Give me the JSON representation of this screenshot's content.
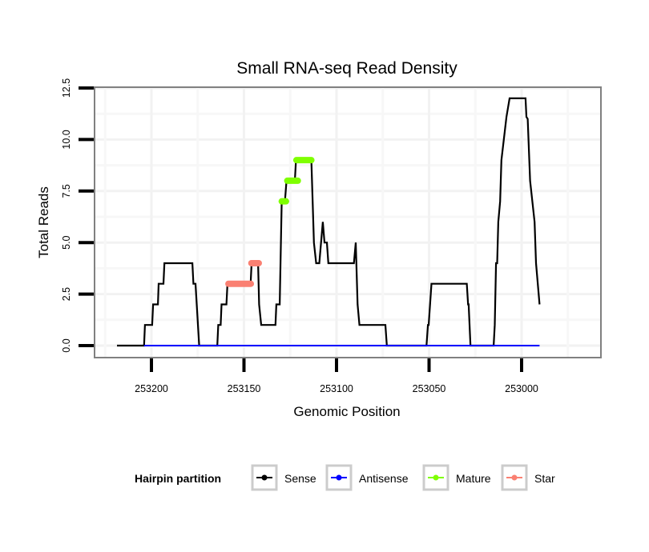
{
  "chart_data": {
    "type": "line",
    "title": "Small RNA-seq Read Density",
    "xlabel": "Genomic Position",
    "ylabel": "Total Reads",
    "x_reversed": true,
    "xlim": [
      253230,
      252970
    ],
    "ylim": [
      -0.6,
      13.0
    ],
    "x_ticks": [
      253200,
      253150,
      253100,
      253050,
      253000
    ],
    "x_tick_labels": [
      "253200",
      "253150",
      "253100",
      "253050",
      "253000"
    ],
    "y_ticks": [
      0.0,
      2.5,
      5.0,
      7.5,
      10.0,
      12.5
    ],
    "y_tick_labels": [
      "0.0",
      "2.5",
      "5.0",
      "7.5",
      "10.0",
      "12.5"
    ],
    "grid": true,
    "legend": {
      "title": "Hairpin partition",
      "placement": "bottom",
      "entries": [
        {
          "label": "Sense",
          "color": "#000000"
        },
        {
          "label": "Antisense",
          "color": "#0000ff"
        },
        {
          "label": "Mature",
          "color": "#7fff00"
        },
        {
          "label": "Star",
          "color": "#fa8072"
        }
      ]
    },
    "series": [
      {
        "name": "Sense",
        "color": "#000000",
        "points": [
          [
            253218.6,
            0
          ],
          [
            253204,
            0
          ],
          [
            253203.5,
            1
          ],
          [
            253199.6,
            1
          ],
          [
            253199.1,
            2
          ],
          [
            253196.5,
            2
          ],
          [
            253196.1,
            3
          ],
          [
            253193.5,
            3
          ],
          [
            253193.0,
            4
          ],
          [
            253177.9,
            4
          ],
          [
            253177.3,
            3
          ],
          [
            253176.2,
            3
          ],
          [
            253174.2,
            0
          ],
          [
            253164.4,
            0
          ],
          [
            253163.9,
            1
          ],
          [
            253162.6,
            1
          ],
          [
            253162.1,
            2
          ],
          [
            253159.5,
            2
          ],
          [
            253158.9,
            3
          ],
          [
            253146.4,
            3
          ],
          [
            253145.9,
            4
          ],
          [
            253142.4,
            4
          ],
          [
            253141.8,
            2
          ],
          [
            253140.7,
            1
          ],
          [
            253133.0,
            1
          ],
          [
            253132.5,
            2
          ],
          [
            253130.7,
            2
          ],
          [
            253129.6,
            7
          ],
          [
            253127.9,
            7
          ],
          [
            253127.0,
            8
          ],
          [
            253122.5,
            8
          ],
          [
            253121.9,
            9
          ],
          [
            253113.6,
            9
          ],
          [
            253112.2,
            5
          ],
          [
            253111.0,
            4
          ],
          [
            253109.3,
            4
          ],
          [
            253107.4,
            6
          ],
          [
            253106.5,
            5
          ],
          [
            253105.2,
            5
          ],
          [
            253104.4,
            4
          ],
          [
            253090.6,
            4
          ],
          [
            253089.6,
            5
          ],
          [
            253088.6,
            2
          ],
          [
            253087.6,
            1
          ],
          [
            253073.6,
            1
          ],
          [
            253072.8,
            0
          ],
          [
            253051.4,
            0
          ],
          [
            253050.6,
            1
          ],
          [
            253050.2,
            1
          ],
          [
            253048.7,
            3
          ],
          [
            253029.6,
            3
          ],
          [
            253028.9,
            2
          ],
          [
            253028.6,
            2
          ],
          [
            253027.6,
            0
          ],
          [
            253015.1,
            0
          ],
          [
            253014.5,
            1
          ],
          [
            253013.8,
            4
          ],
          [
            253013.2,
            4
          ],
          [
            253012.6,
            6
          ],
          [
            253011.6,
            7
          ],
          [
            253010.9,
            9
          ],
          [
            253008.2,
            11.1
          ],
          [
            253006.5,
            12
          ],
          [
            252997.9,
            12
          ],
          [
            252997.4,
            11.1
          ],
          [
            252996.7,
            11
          ],
          [
            252995.4,
            8
          ],
          [
            252993.0,
            6
          ],
          [
            252992.2,
            4
          ],
          [
            252990.3,
            2
          ]
        ]
      },
      {
        "name": "Antisense",
        "color": "#0000ff",
        "points": [
          [
            253204,
            0
          ],
          [
            252990.3,
            0
          ]
        ]
      },
      {
        "name": "Mature",
        "color": "#7fff00",
        "segments": [
          {
            "x_start": 253129.6,
            "x_end": 253127.3,
            "y": 7
          },
          {
            "x_start": 253126.6,
            "x_end": 253120.9,
            "y": 8
          },
          {
            "x_start": 253121.7,
            "x_end": 253113.6,
            "y": 9
          }
        ]
      },
      {
        "name": "Star",
        "color": "#fa8072",
        "segments": [
          {
            "x_start": 253158.4,
            "x_end": 253146.3,
            "y": 3
          },
          {
            "x_start": 253146.0,
            "x_end": 253142.0,
            "y": 4
          }
        ]
      }
    ]
  }
}
